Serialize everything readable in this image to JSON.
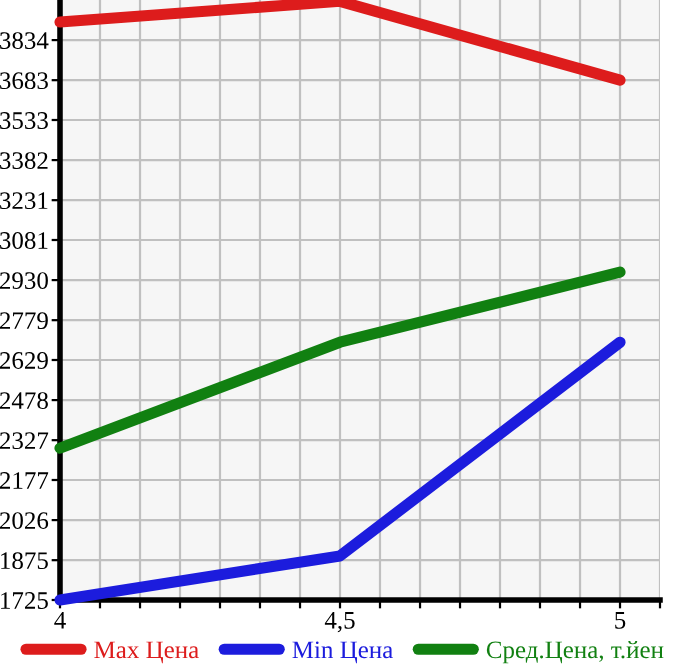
{
  "chart_data": {
    "type": "line",
    "x": [
      4,
      4.5,
      5
    ],
    "series": [
      {
        "name": "Max Цена",
        "color": "#dd1c1c",
        "values": [
          3902,
          3980,
          3683
        ]
      },
      {
        "name": "Min Цена",
        "color": "#1c1cdd",
        "values": [
          1725,
          1891,
          2696
        ]
      },
      {
        "name": "Сред.Цена, т.йен",
        "color": "#118011",
        "values": [
          2297,
          2696,
          2960
        ]
      }
    ],
    "xlim": [
      4,
      5.0714
    ],
    "xticks": [
      4,
      {
        "value": 4.0714,
        "label": null
      },
      {
        "value": 4.1429,
        "label": null
      },
      {
        "value": 4.2143,
        "label": null
      },
      {
        "value": 4.2857,
        "label": null
      },
      {
        "value": 4.3571,
        "label": null
      },
      {
        "value": 4.4286,
        "label": null
      },
      {
        "value": 4.5,
        "label": "4,5"
      },
      {
        "value": 4.5714,
        "label": null
      },
      {
        "value": 4.6429,
        "label": null
      },
      {
        "value": 4.7143,
        "label": null
      },
      {
        "value": 4.7857,
        "label": null
      },
      {
        "value": 4.8571,
        "label": null
      },
      {
        "value": 4.9286,
        "label": null
      },
      5,
      {
        "value": 5.0714,
        "label": null
      }
    ],
    "ylim": [
      1725,
      3985
    ],
    "yticks": [
      1725,
      1875,
      2026,
      2177,
      2327,
      2478,
      2629,
      2779,
      2930,
      3081,
      3231,
      3382,
      3533,
      3683,
      3834
    ],
    "grid": true,
    "legend": "bottom",
    "marker": "none",
    "line_style": "solid"
  }
}
